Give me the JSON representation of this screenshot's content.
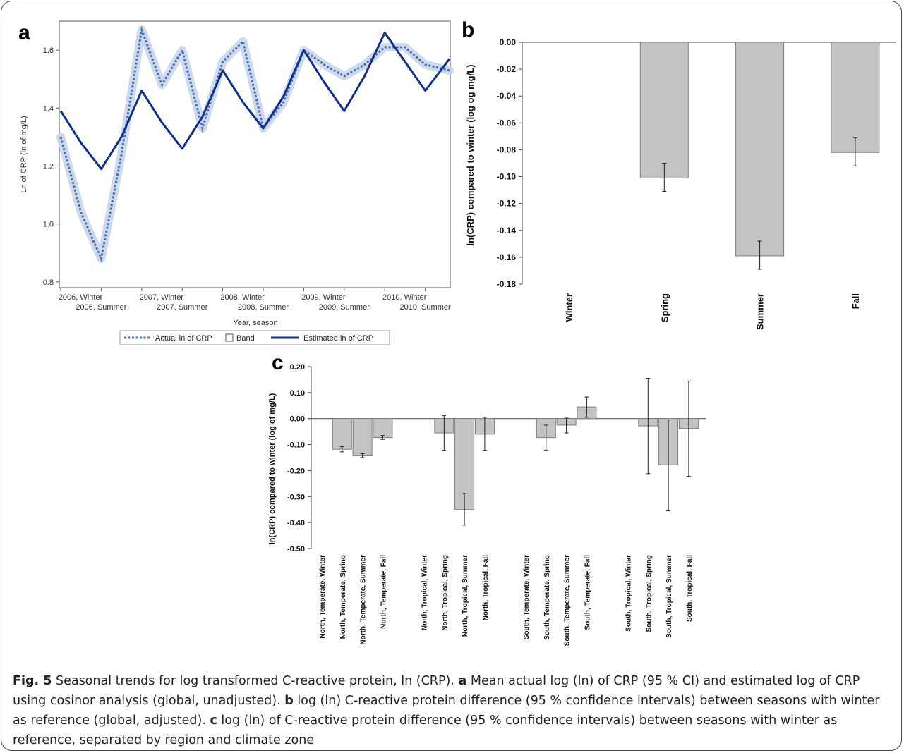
{
  "panels": {
    "a": {
      "letter": "a"
    },
    "b": {
      "letter": "b"
    },
    "c": {
      "letter": "c"
    }
  },
  "caption": {
    "fig_label": "Fig. 5",
    "intro": " Seasonal trends for log transformed C-reactive protein, ln (CRP). ",
    "a_letter": "a",
    "a_text": " Mean actual log (ln) of CRP (95 % CI) and estimated log of CRP using cosinor analysis (global, unadjusted). ",
    "b_letter": "b",
    "b_text": " log (ln) C-reactive protein difference (95 % confidence intervals) between seasons with winter as reference (global, adjusted). ",
    "c_letter": "c",
    "c_text": " log (ln) of C-reactive protein difference (95 % confidence intervals) between seasons with winter as reference, separated by region and climate zone"
  },
  "chart_data": [
    {
      "id": "a",
      "type": "line",
      "xlabel": "Year, season",
      "ylabel": "Ln of CRP (ln of mg/L)",
      "ylim": [
        0.78,
        1.7
      ],
      "yticks": [
        "0.8",
        "1.0",
        "1.2",
        "1.4",
        "1.6"
      ],
      "ytick_values": [
        0.8,
        1.0,
        1.2,
        1.4,
        1.6
      ],
      "x_index_count": 20,
      "xticks_upper": [
        "2006, Winter",
        "2007, Winter",
        "2008, Winter",
        "2009, Winter",
        "2010, Winter"
      ],
      "xticks_upper_index": [
        0,
        4,
        8,
        12,
        16
      ],
      "xticks_lower": [
        "2006, Summer",
        "2007, Summer",
        "2008, Summer",
        "2009, Summer",
        "2010, Summer"
      ],
      "xticks_lower_index": [
        2,
        6,
        10,
        14,
        18
      ],
      "legend": {
        "actual": "Actual ln of CRP",
        "band": "Band",
        "estimated": "Estimated ln of CRP"
      },
      "colors": {
        "actual": "#4a6fb5",
        "band": "#c8d6ea",
        "estimated": "#0f2f8f"
      },
      "series": [
        {
          "name": "Actual ln of CRP",
          "style": "dotted",
          "x": [
            0,
            1,
            2,
            3,
            4,
            5,
            6,
            7,
            8,
            9,
            10,
            11,
            12,
            13,
            14,
            15,
            16,
            17,
            18,
            19.2
          ],
          "values": [
            1.3,
            1.04,
            0.88,
            1.24,
            1.67,
            1.48,
            1.6,
            1.33,
            1.56,
            1.63,
            1.33,
            1.42,
            1.6,
            1.55,
            1.51,
            1.55,
            1.61,
            1.61,
            1.55,
            1.53
          ]
        },
        {
          "name": "Estimated ln of CRP",
          "style": "solid",
          "x": [
            0,
            1,
            2,
            3,
            4,
            5,
            6,
            7,
            8,
            9,
            10,
            11,
            12,
            13,
            14,
            15,
            16,
            17,
            18,
            19.2
          ],
          "values": [
            1.39,
            1.28,
            1.19,
            1.3,
            1.46,
            1.35,
            1.26,
            1.37,
            1.53,
            1.42,
            1.33,
            1.44,
            1.6,
            1.49,
            1.39,
            1.51,
            1.66,
            1.56,
            1.46,
            1.57
          ]
        }
      ]
    },
    {
      "id": "b",
      "type": "bar",
      "ylabel": "ln(CRP) compared to winter (log og mg/L)",
      "ylim": [
        -0.18,
        0.0
      ],
      "yticks": [
        "0.00",
        "-0.02",
        "-0.04",
        "-0.06",
        "-0.08",
        "-0.10",
        "-0.12",
        "-0.14",
        "-0.16",
        "-0.18"
      ],
      "ytick_values": [
        0.0,
        -0.02,
        -0.04,
        -0.06,
        -0.08,
        -0.1,
        -0.12,
        -0.14,
        -0.16,
        -0.18
      ],
      "categories": [
        "Winter",
        "Spring",
        "Summer",
        "Fall"
      ],
      "values": [
        0.0,
        -0.101,
        -0.159,
        -0.082
      ],
      "ci_low": [
        0.0,
        -0.111,
        -0.169,
        -0.092
      ],
      "ci_high": [
        0.0,
        -0.09,
        -0.148,
        -0.071
      ],
      "colors": {
        "bar": "#c4c4c4",
        "bar_edge": "#7f7f7f"
      }
    },
    {
      "id": "c",
      "type": "bar",
      "ylabel": "ln(CRP) compared to winter (log of mg/L)",
      "ylim": [
        -0.5,
        0.2
      ],
      "yticks": [
        "0.20",
        "0.10",
        "0.00",
        "-0.10",
        "-0.20",
        "-0.30",
        "-0.40",
        "-0.50"
      ],
      "ytick_values": [
        0.2,
        0.1,
        0.0,
        -0.1,
        -0.2,
        -0.3,
        -0.4,
        -0.5
      ],
      "categories": [
        "North, Temperate, Winter",
        "North, Temperate, Spring",
        "North, Temperate, Summer",
        "North, Temperate, Fall",
        "North, Tropical, Winter",
        "North, Tropical, Spring",
        "North, Tropical, Summer",
        "North, Tropical, Fall",
        "South, Temperate, Winter",
        "South, Temperate, Spring",
        "South, Temperate, Summer",
        "South, Temperate, Fall",
        "South, Tropical, Winter",
        "South, Tropical, Spring",
        "South, Tropical, Summer",
        "South, Tropical, Fall"
      ],
      "values": [
        0,
        -0.118,
        -0.143,
        -0.073,
        0,
        -0.055,
        -0.35,
        -0.06,
        0,
        -0.073,
        -0.025,
        0.045,
        0,
        -0.028,
        -0.178,
        -0.038
      ],
      "ci_low": [
        0,
        -0.128,
        -0.15,
        -0.08,
        0,
        -0.122,
        -0.41,
        -0.122,
        0,
        -0.122,
        -0.055,
        0.005,
        0,
        -0.212,
        -0.355,
        -0.222
      ],
      "ci_high": [
        0,
        -0.108,
        -0.135,
        -0.065,
        0,
        0.012,
        -0.288,
        0.005,
        0,
        -0.025,
        0.002,
        0.083,
        0,
        0.155,
        -0.005,
        0.145
      ],
      "colors": {
        "bar": "#c4c4c4",
        "bar_edge": "#7f7f7f"
      }
    }
  ]
}
